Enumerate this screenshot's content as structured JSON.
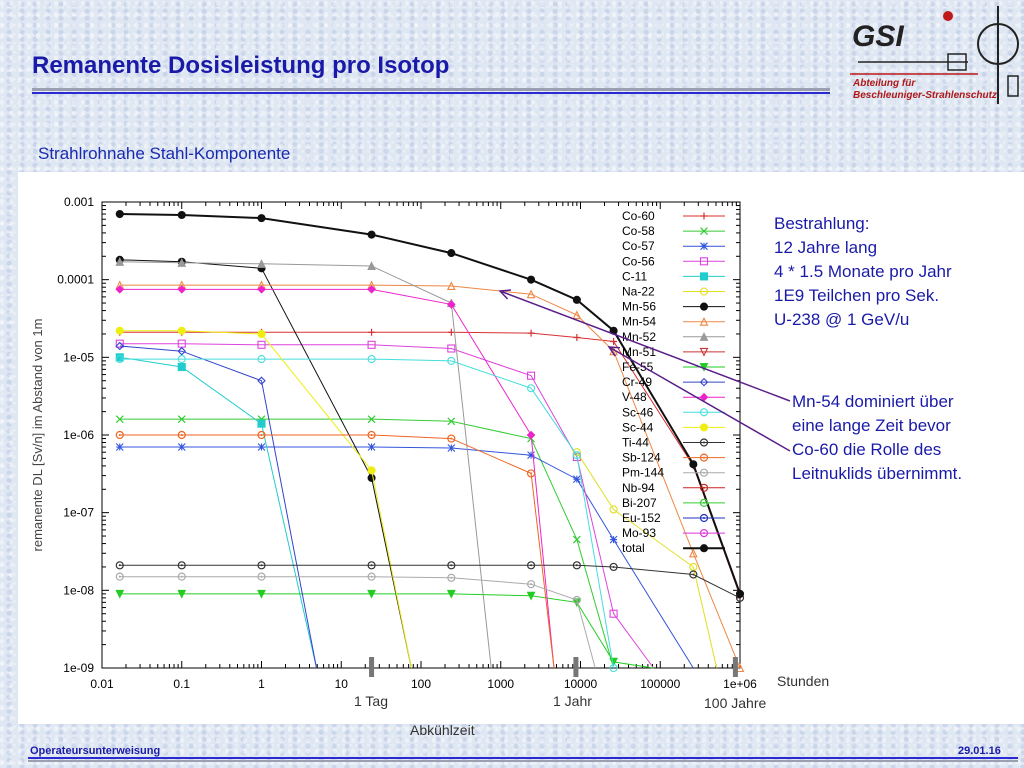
{
  "slide": {
    "title": "Remanente Dosisleistung pro Isotop",
    "subtitle": "Strahlrohnahe Stahl-Komponente",
    "logo_text": "GSI",
    "department_line1": "Abteilung für",
    "department_line2": "Beschleuniger-Strahlenschutz",
    "footer_left": "Operateursunterweisung",
    "footer_right": "29.01.16",
    "note_irradiation": [
      "Bestrahlung:",
      "12 Jahre lang",
      "4 * 1.5 Monate pro Jahr",
      "1E9 Teilchen pro Sek.",
      "U-238 @ 1 GeV/u"
    ],
    "note_mn54": [
      "Mn-54 dominiert über",
      "eine lange Zeit bevor",
      "Co-60 die Rolle des",
      "Leitnuklids übernimmt."
    ],
    "x_unit": "Stunden",
    "x_title": "Abkühlzeit",
    "time_marks": [
      {
        "label": "1 Tag",
        "hours": 24
      },
      {
        "label": "1 Jahr",
        "hours": 8760
      },
      {
        "label": "100 Jahre",
        "hours": 876000
      }
    ],
    "colors": {
      "title": "#1a1aa8",
      "accent_rule": "#2a2ad0",
      "logo_red": "#b01818",
      "note": "#1a1aa8"
    }
  },
  "chart_data": {
    "type": "line",
    "xlabel": "",
    "ylabel": "remanente DL [Sv/n] im Abstand von 1m",
    "x_scale": "log",
    "y_scale": "log",
    "xlim": [
      0.01,
      1000000
    ],
    "ylim": [
      1e-09,
      0.001
    ],
    "x_ticks": [
      "0.01",
      "0.1",
      "1",
      "10",
      "100",
      "1000",
      "10000",
      "100000",
      "1e+06"
    ],
    "x_tick_values": [
      0.01,
      0.1,
      1,
      10,
      100,
      1000,
      10000,
      100000,
      1000000
    ],
    "y_ticks": [
      "1e-09",
      "1e-08",
      "1e-07",
      "1e-06",
      "1e-05",
      "0.0001",
      "0.001"
    ],
    "y_tick_values": [
      1e-09,
      1e-08,
      1e-07,
      1e-06,
      1e-05,
      0.0001,
      0.001
    ],
    "legend_position": "top-right",
    "x": [
      0.0167,
      0.1,
      1,
      24,
      240,
      2400,
      9000,
      26000,
      260000,
      1000000
    ],
    "series": [
      {
        "name": "Co-60",
        "color": "#d83030",
        "marker": "plus",
        "values": [
          2.1e-05,
          2.1e-05,
          2.1e-05,
          2.1e-05,
          2.1e-05,
          2.05e-05,
          1.8e-05,
          1.6e-05,
          4e-07,
          8.5e-09
        ]
      },
      {
        "name": "Co-58",
        "color": "#33cc33",
        "marker": "x",
        "values": [
          1.6e-06,
          1.6e-06,
          1.6e-06,
          1.6e-06,
          1.5e-06,
          9e-07,
          4.5e-08,
          5e-10,
          null,
          null
        ]
      },
      {
        "name": "Co-57",
        "color": "#3355dd",
        "marker": "asterisk",
        "values": [
          7e-07,
          7e-07,
          7e-07,
          7e-07,
          6.8e-07,
          5.5e-07,
          2.7e-07,
          4.5e-08,
          5e-10,
          null
        ]
      },
      {
        "name": "Co-56",
        "color": "#dd44dd",
        "marker": "square",
        "values": [
          1.5e-05,
          1.5e-05,
          1.45e-05,
          1.45e-05,
          1.3e-05,
          5.8e-06,
          5.2e-07,
          5e-09,
          null,
          null
        ]
      },
      {
        "name": "C-11",
        "color": "#22cccc",
        "marker": "filled-square",
        "values": [
          1e-05,
          7.5e-06,
          1.4e-06,
          null,
          null,
          null,
          null,
          null,
          null,
          null
        ]
      },
      {
        "name": "Na-22",
        "color": "#e0e020",
        "marker": "circle",
        "values": [
          null,
          null,
          null,
          null,
          null,
          null,
          6e-07,
          1.1e-07,
          2e-08,
          null
        ]
      },
      {
        "name": "Mn-56",
        "color": "#111111",
        "marker": "filled-circle",
        "values": [
          0.00018,
          0.00017,
          0.00014,
          2.8e-07,
          null,
          null,
          null,
          null,
          null,
          null
        ]
      },
      {
        "name": "Mn-54",
        "color": "#ee8844",
        "marker": "triangle",
        "values": [
          8.5e-05,
          8.5e-05,
          8.5e-05,
          8.5e-05,
          8.3e-05,
          6.5e-05,
          3.5e-05,
          1.2e-05,
          3e-08,
          1e-09
        ]
      },
      {
        "name": "Mn-52",
        "color": "#999999",
        "marker": "filled-triangle",
        "values": [
          0.00017,
          0.000165,
          0.00016,
          0.00015,
          5e-05,
          null,
          null,
          null,
          null,
          null
        ]
      },
      {
        "name": "Mn-51",
        "color": "#cc3333",
        "marker": "inverted-triangle",
        "values": [
          null,
          null,
          null,
          null,
          null,
          null,
          null,
          null,
          null,
          null
        ]
      },
      {
        "name": "Fe-55",
        "color": "#22cc22",
        "marker": "filled-inverted-triangle",
        "values": [
          9e-09,
          9e-09,
          9e-09,
          9e-09,
          9e-09,
          8.5e-09,
          7e-09,
          1.2e-09,
          null,
          null
        ]
      },
      {
        "name": "Cr-49",
        "color": "#3344cc",
        "marker": "diamond",
        "values": [
          1.4e-05,
          1.2e-05,
          5e-06,
          null,
          null,
          null,
          null,
          null,
          null,
          null
        ]
      },
      {
        "name": "V-48",
        "color": "#ee22cc",
        "marker": "filled-diamond",
        "values": [
          7.5e-05,
          7.5e-05,
          7.5e-05,
          7.5e-05,
          4.8e-05,
          1e-06,
          null,
          null,
          null,
          null
        ]
      },
      {
        "name": "Sc-46",
        "color": "#44dddd",
        "marker": "pentagon",
        "values": [
          9.5e-06,
          9.5e-06,
          9.5e-06,
          9.5e-06,
          9e-06,
          4e-06,
          5.5e-07,
          1e-09,
          null,
          null
        ]
      },
      {
        "name": "Sc-44",
        "color": "#eeee11",
        "marker": "filled-pentagon",
        "values": [
          2.2e-05,
          2.2e-05,
          2e-05,
          3.5e-07,
          null,
          null,
          null,
          null,
          null,
          null
        ]
      },
      {
        "name": "Ti-44",
        "color": "#333333",
        "marker": "circle-dot",
        "values": [
          2.1e-08,
          2.1e-08,
          2.1e-08,
          2.1e-08,
          2.1e-08,
          2.1e-08,
          2.1e-08,
          2e-08,
          1.6e-08,
          8e-09
        ]
      },
      {
        "name": "Sb-124",
        "color": "#ee6622",
        "marker": "circle-dot",
        "values": [
          1e-06,
          1e-06,
          1e-06,
          1e-06,
          9e-07,
          3.2e-07,
          null,
          null,
          null,
          null
        ]
      },
      {
        "name": "Pm-144",
        "color": "#aaaaaa",
        "marker": "circle-dot",
        "values": [
          1.5e-08,
          1.5e-08,
          1.5e-08,
          1.5e-08,
          1.45e-08,
          1.2e-08,
          7.5e-09,
          null,
          null,
          null
        ]
      },
      {
        "name": "Nb-94",
        "color": "#cc2222",
        "marker": "circle-dot",
        "values": [
          null,
          null,
          null,
          null,
          null,
          null,
          null,
          null,
          null,
          null
        ]
      },
      {
        "name": "Bi-207",
        "color": "#33cc33",
        "marker": "circle-dot",
        "values": [
          null,
          null,
          null,
          null,
          null,
          null,
          null,
          null,
          null,
          null
        ]
      },
      {
        "name": "Eu-152",
        "color": "#2233bb",
        "marker": "circle-dot",
        "values": [
          null,
          null,
          null,
          null,
          null,
          null,
          null,
          null,
          null,
          null
        ]
      },
      {
        "name": "Mo-93",
        "color": "#dd33dd",
        "marker": "circle-dot",
        "values": [
          null,
          null,
          null,
          null,
          null,
          null,
          null,
          null,
          null,
          null
        ]
      },
      {
        "name": "total",
        "color": "#111111",
        "marker": "filled-circle",
        "values": [
          0.0007,
          0.00068,
          0.00062,
          0.00038,
          0.00022,
          0.0001,
          5.5e-05,
          2.2e-05,
          4.2e-07,
          9e-09
        ]
      }
    ]
  }
}
